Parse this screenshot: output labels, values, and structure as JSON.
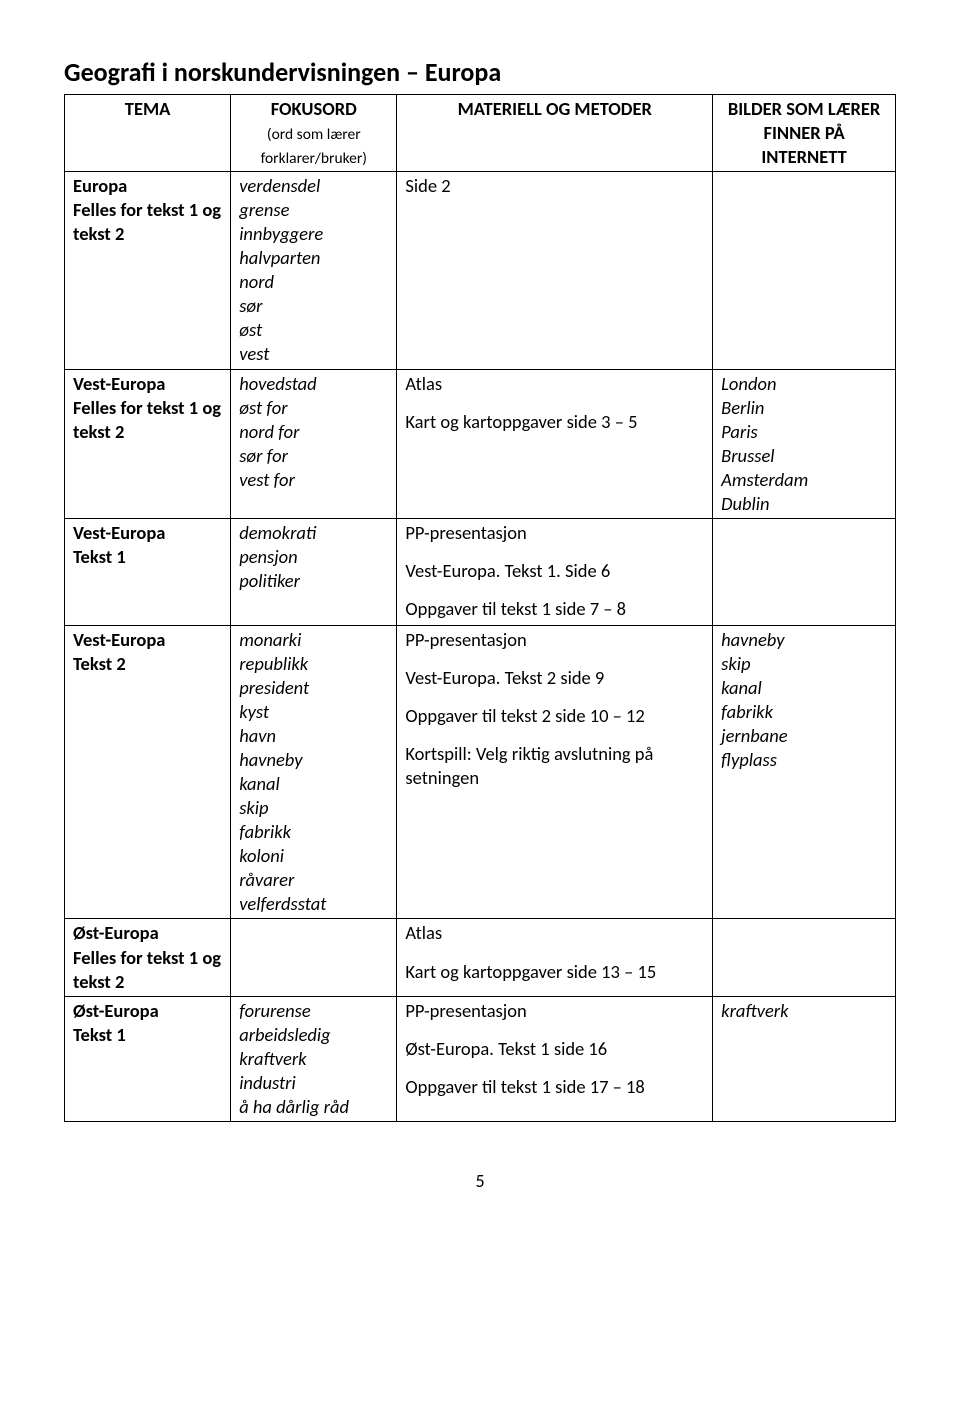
{
  "title": "Geografi i norskundervisningen – Europa",
  "page_number": "5",
  "header": {
    "tema": "TEMA",
    "fokusord": "FOKUSORD",
    "fokusord_sub": "(ord som lærer forklarer/bruker)",
    "materiell": "MATERIELL OG METODER",
    "bilder": "BILDER SOM LÆRER FINNER PÅ INTERNETT"
  },
  "rows": {
    "r1": {
      "tema_l1": "Europa",
      "tema_l2": "Felles for tekst 1 og tekst 2",
      "fokus": "verdensdel\ngrense\ninnbyggere\nhalvparten\nnord\nsør\nøst\nvest",
      "mat": "Side 2",
      "bild": ""
    },
    "r2": {
      "tema_l1": "Vest-Europa",
      "tema_l2": "Felles for tekst 1 og tekst 2",
      "fokus": "hovedstad\nøst for\nnord for\nsør for\nvest for",
      "mat_l1": "Atlas",
      "mat_l2": "Kart og kartoppgaver side 3 – 5",
      "bild": "London\nBerlin\nParis\nBrussel\nAmsterdam\nDublin"
    },
    "r3": {
      "tema_l1": "Vest-Europa",
      "tema_l2": "Tekst 1",
      "fokus": "demokrati\npensjon\npolitiker",
      "mat_l1": "PP-presentasjon",
      "mat_l2": "Vest-Europa. Tekst 1. Side 6",
      "mat_l3": "Oppgaver til tekst 1 side 7 – 8",
      "bild": ""
    },
    "r4": {
      "tema_l1": "Vest-Europa",
      "tema_l2": "Tekst 2",
      "fokus": "monarki\nrepublikk\npresident\nkyst\nhavn\nhavneby\nkanal\nskip\nfabrikk\nkoloni\nråvarer\nvelferdsstat",
      "mat_l1": "PP-presentasjon",
      "mat_l2": "Vest-Europa. Tekst 2 side 9",
      "mat_l3": "Oppgaver til tekst 2 side 10 – 12",
      "mat_l4": "Kortspill: Velg riktig avslutning på setningen",
      "bild": "havneby\nskip\nkanal\nfabrikk\njernbane\nflyplass"
    },
    "r5": {
      "tema_l1": "Øst-Europa",
      "tema_l2": "Felles for tekst 1 og tekst 2",
      "fokus": "",
      "mat_l1": "Atlas",
      "mat_l2": "Kart og kartoppgaver side 13 – 15",
      "bild": ""
    },
    "r6": {
      "tema_l1": "Øst-Europa",
      "tema_l2": "Tekst 1",
      "fokus": "forurense\narbeidsledig\nkraftverk\nindustri\nå ha dårlig råd",
      "mat_l1": "PP-presentasjon",
      "mat_l2": "Øst-Europa. Tekst 1 side 16",
      "mat_l3": "Oppgaver til tekst 1 side 17 – 18",
      "bild": "kraftverk"
    }
  }
}
